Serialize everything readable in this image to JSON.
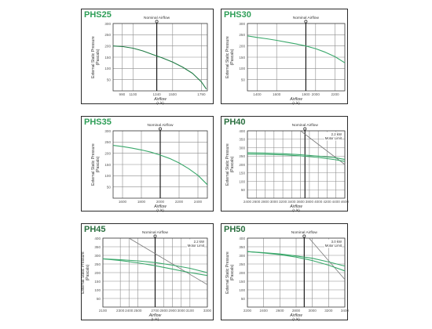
{
  "chart_data": [
    {
      "type": "line",
      "title": "PHS25",
      "title_color": "#2e9e57",
      "xlabel": "Airflow",
      "xunit": "(L/s)",
      "ylabel": "External Static Pressure",
      "yunit": "(Pascals)",
      "xlim": [
        900,
        1850
      ],
      "ylim": [
        0,
        300
      ],
      "xticks": [
        990,
        1100,
        1340,
        1500,
        1790
      ],
      "xtick_labels": [
        "990",
        "1100",
        "1340",
        "1500",
        "1790"
      ],
      "yticks": [
        50,
        100,
        150,
        200,
        250,
        300
      ],
      "nominal": {
        "x": 1340,
        "label": "Nominal Airflow"
      },
      "grid": true,
      "series": [
        {
          "color": "#1e7a43",
          "x": [
            900,
            1000,
            1100,
            1200,
            1300,
            1400,
            1500,
            1600,
            1700,
            1790,
            1840
          ],
          "y": [
            200,
            197,
            190,
            178,
            162,
            146,
            128,
            106,
            78,
            40,
            8
          ]
        }
      ]
    },
    {
      "type": "line",
      "title": "PHS30",
      "title_color": "#2e9e57",
      "xlabel": "Airflow",
      "xunit": "(L/s)",
      "ylabel": "External Static Pressure",
      "yunit": "(Pascals)",
      "xlim": [
        1300,
        2300
      ],
      "ylim": [
        0,
        300
      ],
      "xticks": [
        1400,
        1600,
        1900,
        2000,
        2200
      ],
      "xtick_labels": [
        "1400",
        "1600",
        "1900",
        "2000",
        "2200"
      ],
      "yticks": [
        50,
        100,
        150,
        200,
        250,
        300
      ],
      "nominal": {
        "x": 1900,
        "label": "Nominal Airflow"
      },
      "grid": true,
      "series": [
        {
          "color": "#3aa86b",
          "x": [
            1300,
            1400,
            1500,
            1600,
            1700,
            1800,
            1900,
            2000,
            2100,
            2200,
            2300
          ],
          "y": [
            245,
            238,
            232,
            225,
            217,
            209,
            200,
            188,
            172,
            152,
            125
          ]
        }
      ]
    },
    {
      "type": "line",
      "title": "PHS35",
      "title_color": "#2e9e57",
      "xlabel": "Airflow",
      "xunit": "(L/s)",
      "ylabel": "External Static Pressure",
      "yunit": "(Pascals)",
      "xlim": [
        1500,
        2500
      ],
      "ylim": [
        0,
        300
      ],
      "xticks": [
        1600,
        1800,
        2000,
        2200,
        2400
      ],
      "xtick_labels": [
        "1600",
        "1800",
        "2000",
        "2200",
        "2400"
      ],
      "yticks": [
        50,
        100,
        150,
        200,
        250,
        300
      ],
      "nominal": {
        "x": 2000,
        "label": "Nominal Airflow"
      },
      "grid": true,
      "series": [
        {
          "color": "#3aa86b",
          "x": [
            1500,
            1600,
            1700,
            1800,
            1900,
            2000,
            2100,
            2200,
            2300,
            2400,
            2500
          ],
          "y": [
            235,
            230,
            223,
            215,
            205,
            192,
            177,
            157,
            132,
            102,
            60
          ]
        }
      ]
    },
    {
      "type": "line",
      "title": "PH40",
      "title_color": "#2a6f3f",
      "xlabel": "Airflow",
      "xunit": "(L/s)",
      "ylabel": "External Static Pressure",
      "yunit": "(Pascals)",
      "xlim": [
        2400,
        4600
      ],
      "ylim": [
        0,
        400
      ],
      "xticks": [
        2400,
        2600,
        2800,
        3000,
        3200,
        3400,
        3600,
        3800,
        4000,
        4200,
        4400,
        4600
      ],
      "xtick_labels": [
        "2400",
        "2600",
        "2800",
        "3000",
        "3200",
        "3400",
        "3600",
        "3800",
        "4000",
        "4200",
        "4400",
        "4600"
      ],
      "yticks": [
        50,
        100,
        150,
        200,
        250,
        300,
        350,
        400
      ],
      "nominal": {
        "x": 3700,
        "label": "Nominal Airflow"
      },
      "limit_label": [
        "2.2 kW",
        "Motor Limit"
      ],
      "grid": true,
      "series": [
        {
          "color": "#7a7a7a",
          "x": [
            3600,
            4600
          ],
          "y": [
            400,
            200
          ]
        },
        {
          "color": "#3aa86b",
          "x": [
            2400,
            2800,
            3200,
            3600,
            4000,
            4400,
            4600
          ],
          "y": [
            262,
            260,
            257,
            251,
            242,
            228,
            218
          ]
        },
        {
          "color": "#3aa86b",
          "x": [
            2400,
            2800,
            3200,
            3600,
            4000,
            4400,
            4600
          ],
          "y": [
            270,
            268,
            264,
            258,
            250,
            240,
            230
          ]
        }
      ]
    },
    {
      "type": "line",
      "title": "PH45",
      "title_color": "#2a6f3f",
      "xlabel": "Airflow",
      "xunit": "(L/s)",
      "ylabel": "External Static Pressure",
      "yunit": "(Pascals)",
      "xlim": [
        2100,
        3300
      ],
      "ylim": [
        0,
        400
      ],
      "xticks": [
        2100,
        2300,
        2400,
        2500,
        2700,
        2800,
        2900,
        3000,
        3100,
        3300
      ],
      "xtick_labels": [
        "2100",
        "2300",
        "2400",
        "2500",
        "2700",
        "2800",
        "2900",
        "3000",
        "3100",
        "3300"
      ],
      "yticks": [
        50,
        100,
        150,
        200,
        250,
        300,
        350,
        400
      ],
      "nominal": {
        "x": 2700,
        "label": "Nominal Airflow"
      },
      "limit_label": [
        "2.2 kW",
        "Motor Limit"
      ],
      "grid": true,
      "series": [
        {
          "color": "#7a7a7a",
          "x": [
            2400,
            3300
          ],
          "y": [
            400,
            130
          ]
        },
        {
          "color": "#3aa86b",
          "x": [
            2100,
            2300,
            2500,
            2700,
            2900,
            3100,
            3300
          ],
          "y": [
            280,
            275,
            268,
            258,
            243,
            225,
            200
          ]
        },
        {
          "color": "#3aa86b",
          "x": [
            2100,
            2300,
            2500,
            2700,
            2900,
            3100,
            3300
          ],
          "y": [
            280,
            270,
            257,
            240,
            220,
            200,
            183
          ]
        }
      ]
    },
    {
      "type": "line",
      "title": "PH50",
      "title_color": "#2a6f3f",
      "xlabel": "Airflow",
      "xunit": "(L/s)",
      "ylabel": "External Static Pressure",
      "yunit": "(Pascals)",
      "xlim": [
        2200,
        3400
      ],
      "ylim": [
        0,
        400
      ],
      "xticks": [
        2200,
        2400,
        2600,
        2800,
        3000,
        3200,
        3400
      ],
      "xtick_labels": [
        "2200",
        "2400",
        "2600",
        "2800",
        "3000",
        "3200",
        "3400"
      ],
      "yticks": [
        50,
        100,
        150,
        200,
        250,
        300,
        350,
        400
      ],
      "nominal": {
        "x": 2900,
        "label": "Nominal Airflow"
      },
      "limit_label": [
        "3.0 kW",
        "Motor Limit"
      ],
      "grid": true,
      "series": [
        {
          "color": "#7a7a7a",
          "x": [
            2960,
            3400
          ],
          "y": [
            400,
            160
          ]
        },
        {
          "color": "#3aa86b",
          "x": [
            2200,
            2400,
            2600,
            2800,
            3000,
            3200,
            3400
          ],
          "y": [
            322,
            316,
            308,
            297,
            283,
            262,
            238
          ]
        },
        {
          "color": "#3aa86b",
          "x": [
            2200,
            2400,
            2600,
            2800,
            3000,
            3200,
            3400
          ],
          "y": [
            322,
            314,
            304,
            290,
            270,
            243,
            210
          ]
        }
      ]
    }
  ]
}
